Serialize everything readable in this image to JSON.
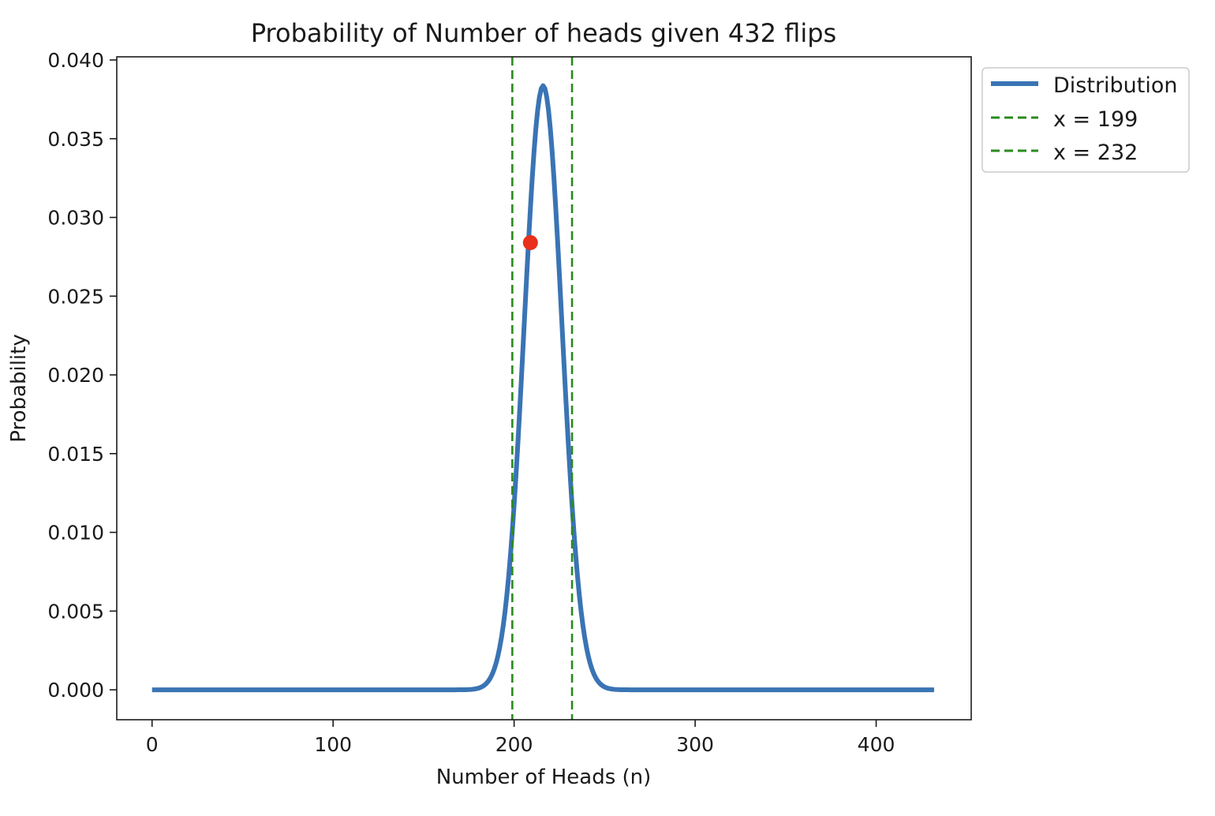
{
  "chart_data": {
    "type": "line",
    "title": "Probability of Number of heads given 432 flips",
    "xlabel": "Number of Heads (n)",
    "ylabel": "Probability",
    "xlim": [
      -19.5,
      452.5
    ],
    "ylim": [
      -0.0019,
      0.0402
    ],
    "xticks": [
      0,
      100,
      200,
      300,
      400
    ],
    "yticks": [
      0.0,
      0.005,
      0.01,
      0.015,
      0.02,
      0.025,
      0.03,
      0.035,
      0.04
    ],
    "ytick_labels": [
      "0.000",
      "0.005",
      "0.010",
      "0.015",
      "0.020",
      "0.025",
      "0.030",
      "0.035",
      "0.040"
    ],
    "grid": false,
    "legend_position": "outside-top-right",
    "series": [
      {
        "name": "Distribution",
        "kind": "binomial-pmf",
        "n": 432,
        "p": 0.5,
        "x_range": [
          0,
          432
        ],
        "peak": {
          "x": 216,
          "y": 0.0384
        },
        "color": "#3a74b4"
      }
    ],
    "vlines": [
      {
        "label": "x = 199",
        "x": 199,
        "color": "#2a8a1c",
        "style": "dashed"
      },
      {
        "label": "x = 232",
        "x": 232,
        "color": "#2a8a1c",
        "style": "dashed"
      }
    ],
    "points": [
      {
        "x": 209,
        "y": 0.0284,
        "color": "#e8301c"
      }
    ]
  }
}
